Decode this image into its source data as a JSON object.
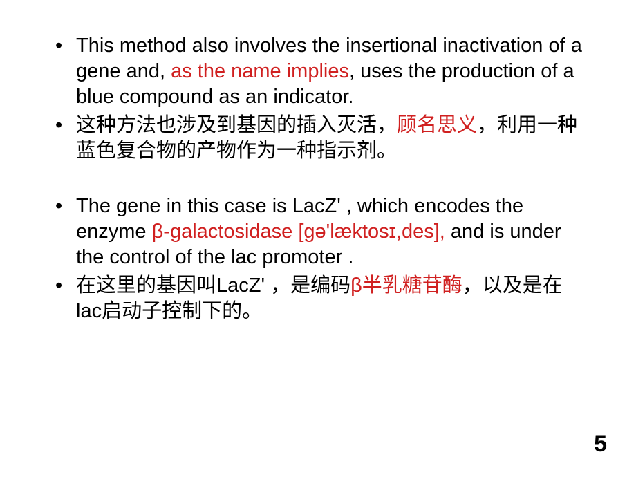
{
  "text_color": "#000000",
  "highlight_color": "#d02020",
  "background_color": "#ffffff",
  "font_size_pt": 22,
  "page_number_font_size_pt": 26,
  "bullets": [
    {
      "segments": [
        {
          "t": "This method also involves the insertional inactivation of a gene and, ",
          "hl": false
        },
        {
          "t": "as the name implies",
          "hl": true
        },
        {
          "t": ", uses the production of a blue compound as an indicator.",
          "hl": false
        }
      ]
    },
    {
      "segments": [
        {
          "t": "这种方法也涉及到基因的插入灭活，",
          "hl": false
        },
        {
          "t": "顾名思义",
          "hl": true
        },
        {
          "t": "，利用一种蓝色复合物的产物作为一种指示剂。",
          "hl": false
        }
      ]
    },
    {
      "segments": [
        {
          "t": "The gene in this case is LacZ' , which encodes the enzyme ",
          "hl": false
        },
        {
          "t": "β-galactosidase [gə'læktosɪ,des],",
          "hl": true
        },
        {
          "t": " and is under the control of the lac promoter .",
          "hl": false
        }
      ]
    },
    {
      "segments": [
        {
          "t": "在这里的基因叫LacZ' ，是编码",
          "hl": false
        },
        {
          "t": "β半乳糖苷酶",
          "hl": true
        },
        {
          "t": "，以及是在lac启动子控制下的。",
          "hl": false
        }
      ]
    }
  ],
  "page_number": "5"
}
